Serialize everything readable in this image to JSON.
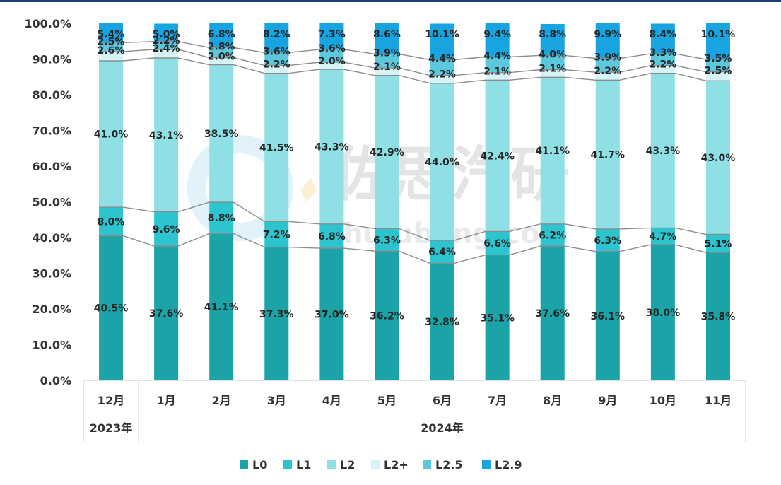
{
  "chart_data": {
    "type": "bar",
    "stacked": true,
    "categories": [
      "12月",
      "1月",
      "2月",
      "3月",
      "4月",
      "5月",
      "6月",
      "7月",
      "8月",
      "9月",
      "10月",
      "11月"
    ],
    "year_groups": [
      {
        "label": "2023年",
        "start": 0,
        "end": 0
      },
      {
        "label": "2024年",
        "start": 1,
        "end": 11
      }
    ],
    "series": [
      {
        "name": "L0",
        "color": "#1ba3a8",
        "values": [
          40.5,
          37.6,
          41.1,
          37.3,
          37.0,
          36.2,
          32.8,
          35.1,
          37.6,
          36.1,
          38.0,
          35.8
        ]
      },
      {
        "name": "L1",
        "color": "#2cc5cf",
        "values": [
          8.0,
          9.6,
          8.8,
          7.2,
          6.8,
          6.3,
          6.4,
          6.6,
          6.2,
          6.3,
          4.7,
          5.1
        ]
      },
      {
        "name": "L2",
        "color": "#8fe0e4",
        "values": [
          41.0,
          43.1,
          38.5,
          41.5,
          43.3,
          42.9,
          44.0,
          42.4,
          41.1,
          41.7,
          43.3,
          43.0
        ]
      },
      {
        "name": "L2+",
        "color": "#d6f3f5",
        "values": [
          2.6,
          2.4,
          2.0,
          2.2,
          2.0,
          2.1,
          2.2,
          2.1,
          2.1,
          2.2,
          2.2,
          2.5
        ]
      },
      {
        "name": "L2.5",
        "color": "#5cc8de",
        "values": [
          2.5,
          2.2,
          2.8,
          3.6,
          3.6,
          3.9,
          4.4,
          4.4,
          4.0,
          3.9,
          3.3,
          3.5
        ]
      },
      {
        "name": "L2.9",
        "color": "#18a4e0",
        "values": [
          5.4,
          5.0,
          6.8,
          8.2,
          7.3,
          8.6,
          10.1,
          9.4,
          8.8,
          9.9,
          8.4,
          10.1
        ]
      }
    ],
    "y_ticks": [
      "0.0%",
      "10.0%",
      "20.0%",
      "30.0%",
      "40.0%",
      "50.0%",
      "60.0%",
      "70.0%",
      "80.0%",
      "90.0%",
      "100.0%"
    ],
    "ylim": [
      0,
      100
    ],
    "grid": false,
    "legend": "bottom-center",
    "connector_lines": true
  },
  "watermark": {
    "text": "佐思汽研",
    "url": "zhujubang.com"
  }
}
